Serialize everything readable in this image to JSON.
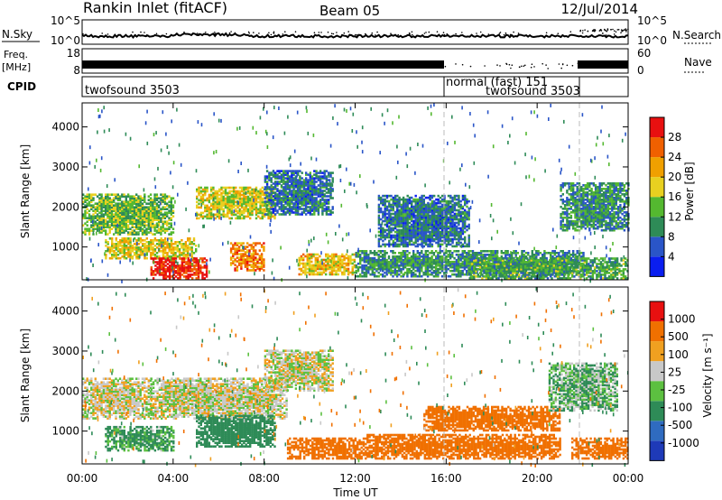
{
  "header": {
    "station": "Rankin Inlet (fitACF)",
    "beam": "Beam 05",
    "date": "12/Jul/2014"
  },
  "strips": {
    "noise": {
      "left_label": "N.Sky",
      "left_ticks": [
        "10^5",
        "10^0"
      ],
      "right_ticks": [
        "10^5",
        "10^0"
      ],
      "right_label": "N.Search"
    },
    "freq": {
      "left_label_1": "Freq.",
      "left_label_2": "[MHz]",
      "left_ticks": [
        "18",
        "8"
      ],
      "right_ticks": [
        "60",
        "0"
      ],
      "right_label": "Nave"
    },
    "cpid": {
      "left_label": "CPID",
      "segments": [
        {
          "start": 0,
          "end": 16,
          "label": "twofsound 3503"
        },
        {
          "start": 16,
          "end": 22,
          "label": "normal (fast) 151"
        },
        {
          "start": 16,
          "end": 22,
          "label": "twofsound 3503"
        }
      ]
    }
  },
  "chart_data": [
    {
      "type": "heatmap",
      "panel": "power",
      "ylabel": "Slant Range [km]",
      "xlim": [
        0,
        24
      ],
      "ylim": [
        180,
        4600
      ],
      "yticks": [
        1000,
        2000,
        3000,
        4000
      ],
      "ytick_labels": [
        "1000",
        "2000",
        "3000",
        "4000"
      ],
      "colorbar": {
        "label": "Power [dB]",
        "range": [
          0,
          32
        ],
        "ticks": [
          4,
          8,
          12,
          16,
          20,
          24,
          28
        ],
        "tick_labels": [
          "4",
          "8",
          "12",
          "16",
          "20",
          "24",
          "28"
        ],
        "colors": [
          "#0a1ef0",
          "#2a55c8",
          "#2e8b57",
          "#54b830",
          "#e8d020",
          "#f0a000",
          "#f06000",
          "#e81010"
        ]
      },
      "dashed_markers_hours": [
        16,
        22
      ],
      "bands": [
        {
          "t0": 0,
          "t1": 4,
          "r0": 1300,
          "r1": 2300,
          "v": 14
        },
        {
          "t0": 1,
          "t1": 5,
          "r0": 700,
          "r1": 1200,
          "v": 18
        },
        {
          "t0": 3,
          "t1": 5.5,
          "r0": 200,
          "r1": 700,
          "v": 30
        },
        {
          "t0": 5,
          "t1": 8.5,
          "r0": 1700,
          "r1": 2500,
          "v": 18
        },
        {
          "t0": 6.5,
          "t1": 8,
          "r0": 400,
          "r1": 1100,
          "v": 24
        },
        {
          "t0": 8,
          "t1": 11,
          "r0": 1800,
          "r1": 2900,
          "v": 8
        },
        {
          "t0": 9.5,
          "t1": 12,
          "r0": 300,
          "r1": 800,
          "v": 20
        },
        {
          "t0": 12,
          "t1": 22,
          "r0": 250,
          "r1": 900,
          "v": 10
        },
        {
          "t0": 13,
          "t1": 17,
          "r0": 1000,
          "r1": 2300,
          "v": 8
        },
        {
          "t0": 21,
          "t1": 24,
          "r0": 1400,
          "r1": 2600,
          "v": 10
        },
        {
          "t0": 17,
          "t1": 24,
          "r0": 200,
          "r1": 700,
          "v": 12
        }
      ]
    },
    {
      "type": "heatmap",
      "panel": "velocity",
      "xlabel": "Time UT",
      "ylabel": "Slant Range [km]",
      "xlim": [
        0,
        24
      ],
      "ylim": [
        180,
        4600
      ],
      "xticks": [
        0,
        4,
        8,
        12,
        16,
        20,
        24
      ],
      "xtick_labels": [
        "00:00",
        "04:00",
        "08:00",
        "12:00",
        "16:00",
        "20:00",
        "00:00"
      ],
      "yticks": [
        1000,
        2000,
        3000,
        4000
      ],
      "ytick_labels": [
        "1000",
        "2000",
        "3000",
        "4000"
      ],
      "colorbar": {
        "label": "Velocity [m s⁻¹]",
        "range": [
          -1200,
          1200
        ],
        "tick_labels": [
          "1000",
          "500",
          "100",
          "25",
          "-25",
          "-100",
          "-500",
          "-1000"
        ],
        "colors": [
          "#1e3ab8",
          "#2f6bc0",
          "#2e8b57",
          "#5cc040",
          "#c8c8c8",
          "#f0a020",
          "#f07000",
          "#e81010"
        ]
      },
      "dashed_markers_hours": [
        16,
        22
      ],
      "bands": [
        {
          "t0": 0,
          "t1": 3,
          "r0": 1300,
          "r1": 2300,
          "v": 0
        },
        {
          "t0": 1,
          "t1": 4,
          "r0": 500,
          "r1": 1100,
          "v": 80
        },
        {
          "t0": 3,
          "t1": 9,
          "r0": 1300,
          "r1": 2300,
          "v": 0
        },
        {
          "t0": 5,
          "t1": 8.5,
          "r0": 600,
          "r1": 1400,
          "v": 200
        },
        {
          "t0": 8,
          "t1": 11,
          "r0": 2000,
          "r1": 3000,
          "v": 0
        },
        {
          "t0": 9,
          "t1": 12.5,
          "r0": 300,
          "r1": 800,
          "v": -200
        },
        {
          "t0": 12.5,
          "t1": 21,
          "r0": 300,
          "r1": 900,
          "v": -300
        },
        {
          "t0": 15,
          "t1": 21,
          "r0": 1000,
          "r1": 1600,
          "v": -200
        },
        {
          "t0": 20.5,
          "t1": 23.5,
          "r0": 1500,
          "r1": 2700,
          "v": 50
        },
        {
          "t0": 21.5,
          "t1": 24,
          "r0": 300,
          "r1": 800,
          "v": -300
        }
      ]
    }
  ]
}
